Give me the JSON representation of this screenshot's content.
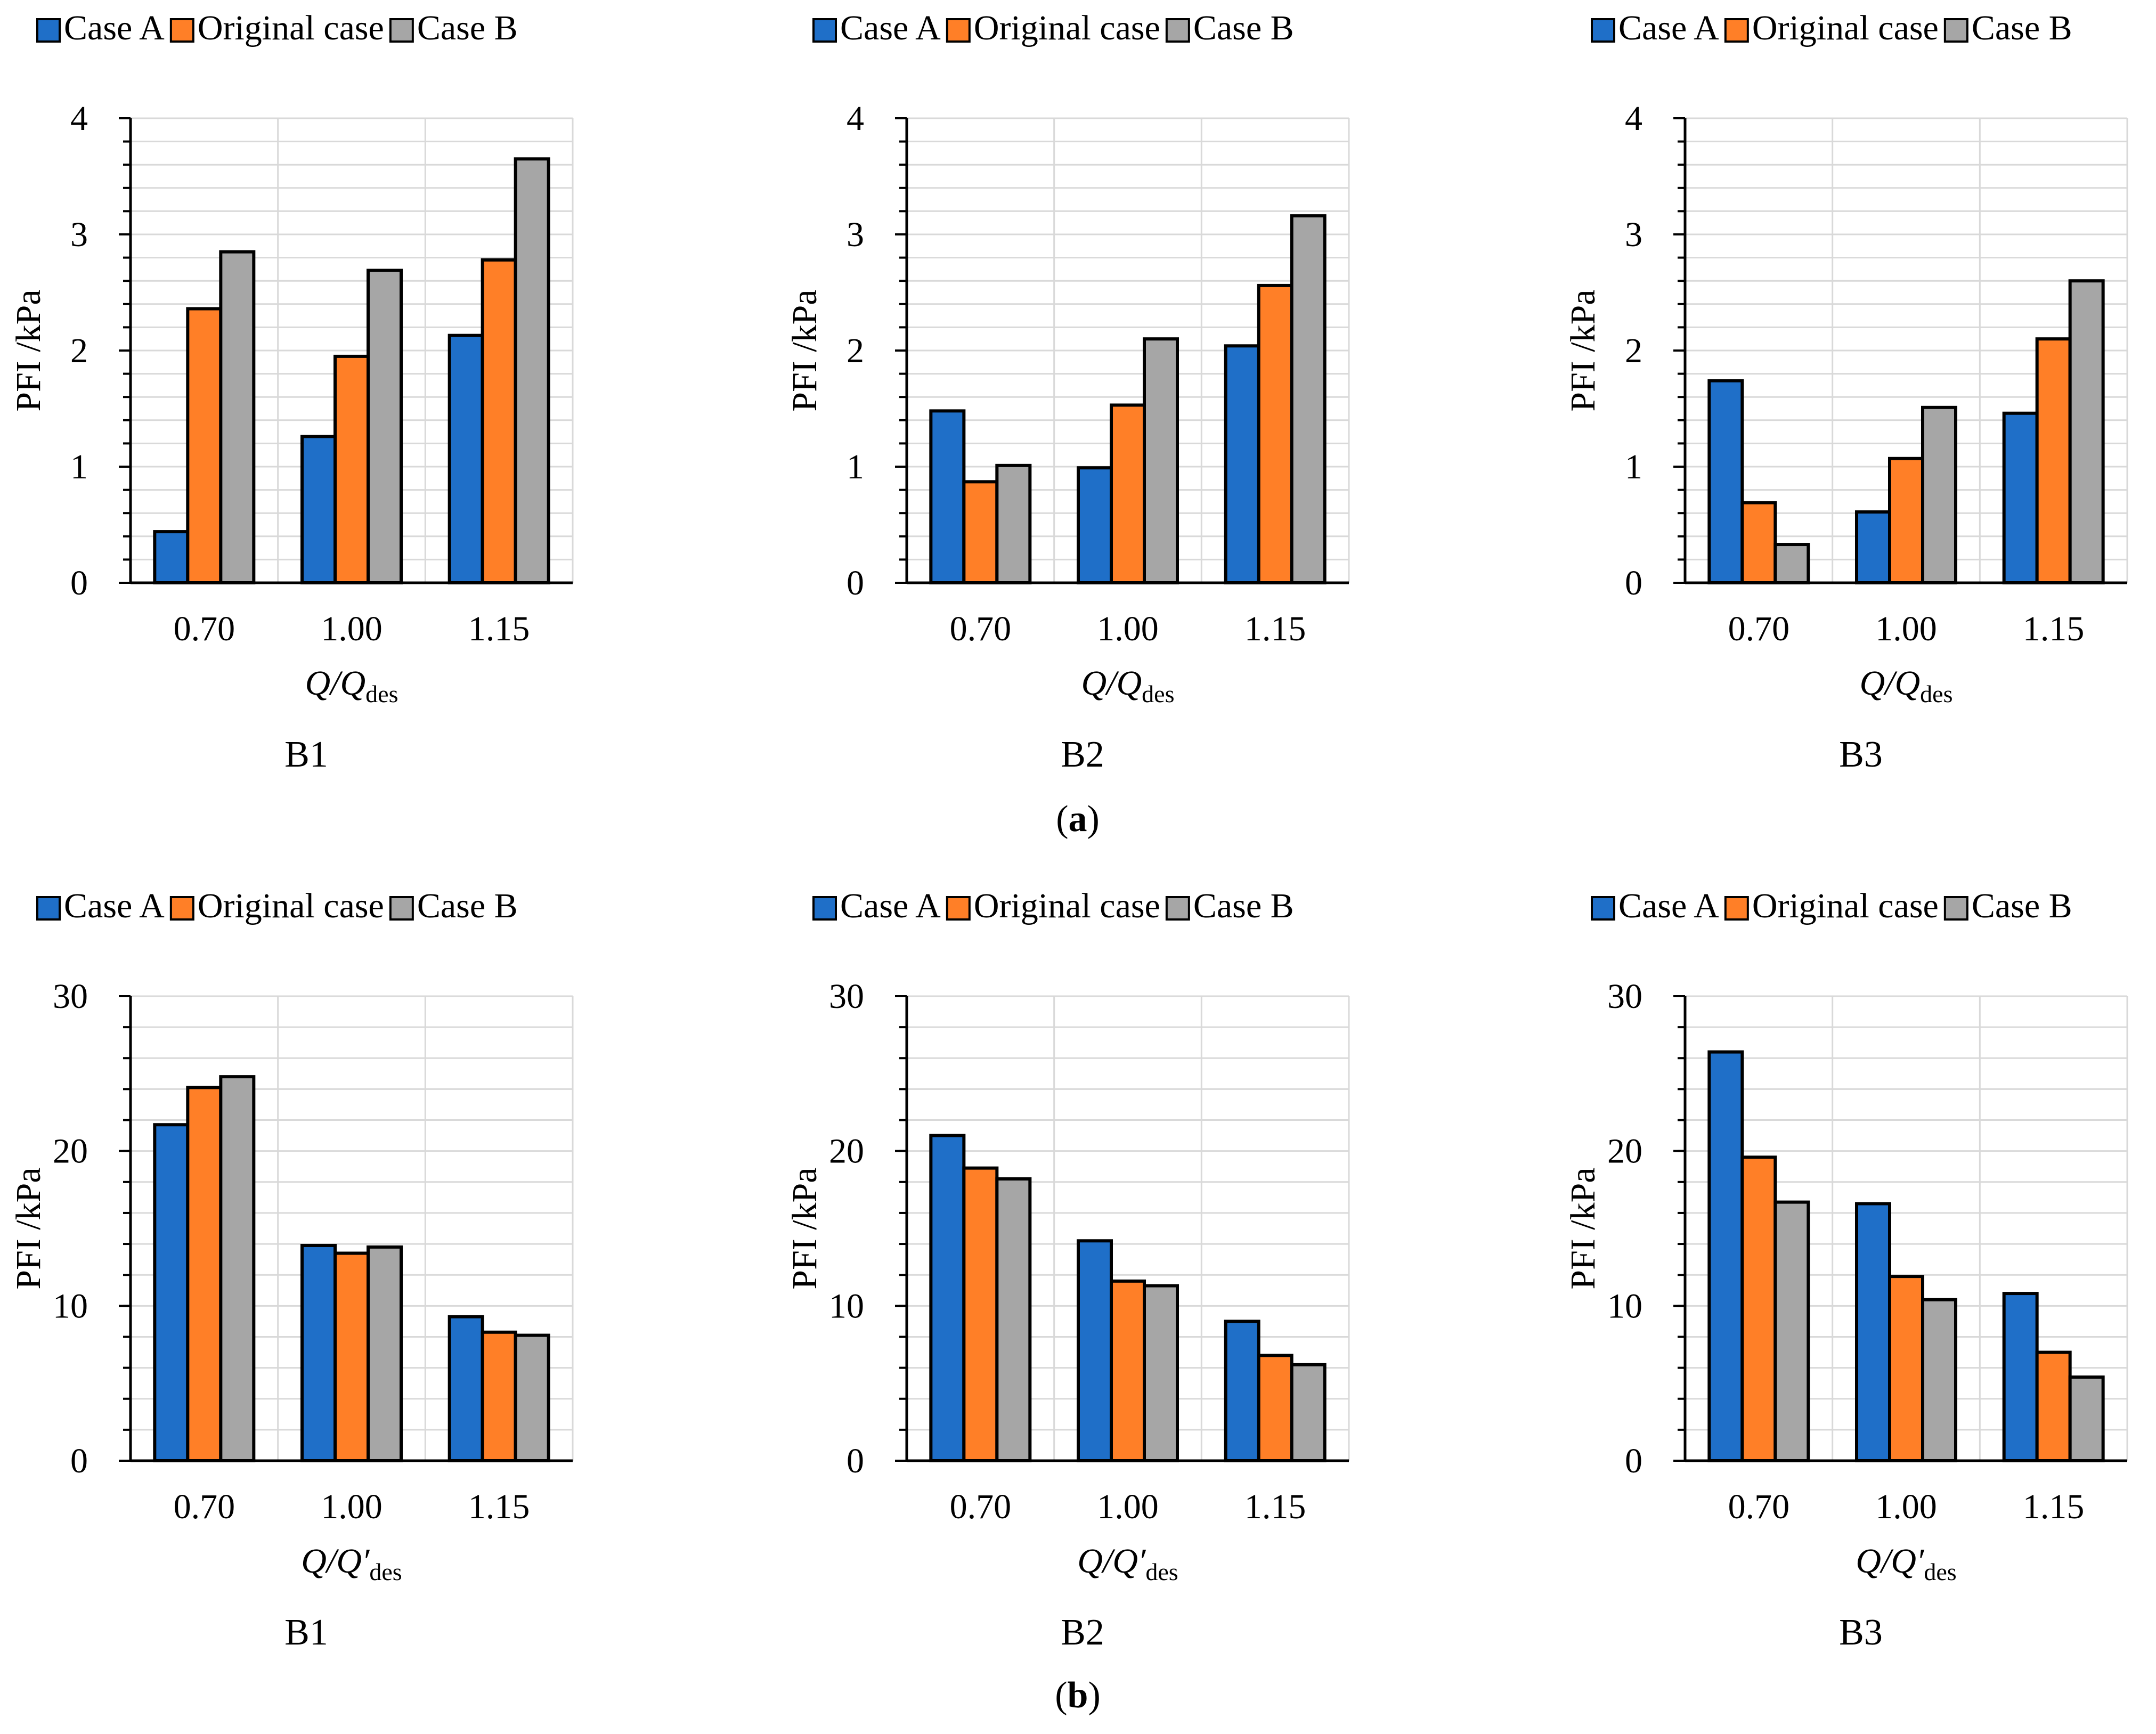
{
  "colors": {
    "case_a": "#1f6fc8",
    "original": "#ff7f27",
    "case_b": "#a6a6a6"
  },
  "legend": [
    "Case A",
    "Original case",
    "Case B"
  ],
  "panel_labels": [
    "a",
    "b"
  ],
  "chart_data": [
    {
      "type": "bar",
      "panel": "a",
      "title": "B1",
      "xlabel": "Q/Qdes",
      "ylabel": "PFI /kPa",
      "categories": [
        "0.70",
        "1.00",
        "1.15"
      ],
      "ylim": [
        0,
        4
      ],
      "yticks": [
        0,
        1,
        2,
        3,
        4
      ],
      "minor_step": 0.2,
      "series": [
        {
          "name": "Case A",
          "values": [
            0.44,
            1.26,
            2.13
          ]
        },
        {
          "name": "Original case",
          "values": [
            2.36,
            1.95,
            2.78
          ]
        },
        {
          "name": "Case B",
          "values": [
            2.85,
            2.69,
            3.65
          ]
        }
      ]
    },
    {
      "type": "bar",
      "panel": "a",
      "title": "B2",
      "xlabel": "Q/Qdes",
      "ylabel": "PFI /kPa",
      "categories": [
        "0.70",
        "1.00",
        "1.15"
      ],
      "ylim": [
        0,
        4
      ],
      "yticks": [
        0,
        1,
        2,
        3,
        4
      ],
      "minor_step": 0.2,
      "series": [
        {
          "name": "Case A",
          "values": [
            1.48,
            0.99,
            2.04
          ]
        },
        {
          "name": "Original case",
          "values": [
            0.87,
            1.53,
            2.56
          ]
        },
        {
          "name": "Case B",
          "values": [
            1.01,
            2.1,
            3.16
          ]
        }
      ]
    },
    {
      "type": "bar",
      "panel": "a",
      "title": "B3",
      "xlabel": "Q/Qdes",
      "ylabel": "PFI /kPa",
      "categories": [
        "0.70",
        "1.00",
        "1.15"
      ],
      "ylim": [
        0,
        4
      ],
      "yticks": [
        0,
        1,
        2,
        3,
        4
      ],
      "minor_step": 0.2,
      "series": [
        {
          "name": "Case A",
          "values": [
            1.74,
            0.61,
            1.46
          ]
        },
        {
          "name": "Original case",
          "values": [
            0.69,
            1.07,
            2.1
          ]
        },
        {
          "name": "Case B",
          "values": [
            0.33,
            1.51,
            2.6
          ]
        }
      ]
    },
    {
      "type": "bar",
      "panel": "b",
      "title": "B1",
      "xlabel": "Q/Q′des",
      "ylabel": "PFI /kPa",
      "categories": [
        "0.70",
        "1.00",
        "1.15"
      ],
      "ylim": [
        0,
        30
      ],
      "yticks": [
        0,
        10,
        20,
        30
      ],
      "minor_step": 2,
      "series": [
        {
          "name": "Case A",
          "values": [
            21.7,
            13.9,
            9.3
          ]
        },
        {
          "name": "Original case",
          "values": [
            24.1,
            13.4,
            8.3
          ]
        },
        {
          "name": "Case B",
          "values": [
            24.8,
            13.8,
            8.1
          ]
        }
      ]
    },
    {
      "type": "bar",
      "panel": "b",
      "title": "B2",
      "xlabel": "Q/Q′des",
      "ylabel": "PFI /kPa",
      "categories": [
        "0.70",
        "1.00",
        "1.15"
      ],
      "ylim": [
        0,
        30
      ],
      "yticks": [
        0,
        10,
        20,
        30
      ],
      "minor_step": 2,
      "series": [
        {
          "name": "Case A",
          "values": [
            21.0,
            14.2,
            9.0
          ]
        },
        {
          "name": "Original case",
          "values": [
            18.9,
            11.6,
            6.8
          ]
        },
        {
          "name": "Case B",
          "values": [
            18.2,
            11.3,
            6.2
          ]
        }
      ]
    },
    {
      "type": "bar",
      "panel": "b",
      "title": "B3",
      "xlabel": "Q/Q′des",
      "ylabel": "PFI /kPa",
      "categories": [
        "0.70",
        "1.00",
        "1.15"
      ],
      "ylim": [
        0,
        30
      ],
      "yticks": [
        0,
        10,
        20,
        30
      ],
      "minor_step": 2,
      "series": [
        {
          "name": "Case A",
          "values": [
            26.4,
            16.6,
            10.8
          ]
        },
        {
          "name": "Original case",
          "values": [
            19.6,
            11.9,
            7.0
          ]
        },
        {
          "name": "Case B",
          "values": [
            16.7,
            10.4,
            5.4
          ]
        }
      ]
    }
  ]
}
